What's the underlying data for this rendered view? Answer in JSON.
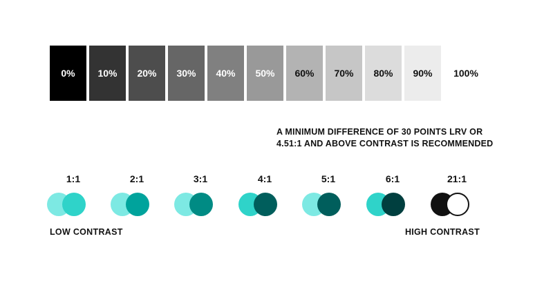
{
  "grayscale": [
    {
      "label": "0%",
      "bg": "#000000",
      "fg": "#ffffff"
    },
    {
      "label": "10%",
      "bg": "#333333",
      "fg": "#ffffff"
    },
    {
      "label": "20%",
      "bg": "#4d4d4d",
      "fg": "#ffffff"
    },
    {
      "label": "30%",
      "bg": "#666666",
      "fg": "#ffffff"
    },
    {
      "label": "40%",
      "bg": "#808080",
      "fg": "#ffffff"
    },
    {
      "label": "50%",
      "bg": "#999999",
      "fg": "#ffffff"
    },
    {
      "label": "60%",
      "bg": "#b3b3b3",
      "fg": "#111111"
    },
    {
      "label": "70%",
      "bg": "#c6c6c6",
      "fg": "#111111"
    },
    {
      "label": "80%",
      "bg": "#dcdcdc",
      "fg": "#111111"
    },
    {
      "label": "90%",
      "bg": "#ececec",
      "fg": "#111111"
    },
    {
      "label": "100%",
      "bg": "#ffffff",
      "fg": "#111111"
    }
  ],
  "note": {
    "line1": "A MINIMUM DIFFERENCE OF 30 POINTS LRV OR",
    "line2": "4.51:1 AND ABOVE CONTRAST IS RECOMMENDED"
  },
  "contrast_pairs": [
    {
      "ratio": "1:1",
      "left_color": "#7de9e3",
      "right_color": "#2fd3c9"
    },
    {
      "ratio": "2:1",
      "left_color": "#7de9e3",
      "right_color": "#00a39c"
    },
    {
      "ratio": "3:1",
      "left_color": "#7de9e3",
      "right_color": "#008b84"
    },
    {
      "ratio": "4:1",
      "left_color": "#2fd3c9",
      "right_color": "#005e5c"
    },
    {
      "ratio": "5:1",
      "left_color": "#7de9e3",
      "right_color": "#005e5c"
    },
    {
      "ratio": "6:1",
      "left_color": "#2fd3c9",
      "right_color": "#003f3f"
    },
    {
      "ratio": "21:1",
      "left_color": "#111111",
      "right_color": "#ffffff"
    }
  ],
  "labels": {
    "low": "LOW CONTRAST",
    "high": "HIGH CONTRAST"
  }
}
